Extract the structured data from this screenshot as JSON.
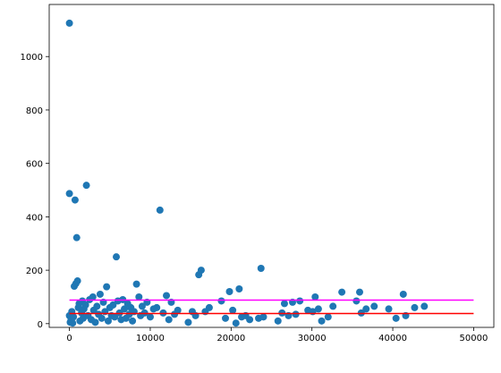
{
  "chart_data": {
    "type": "scatter",
    "xlim": [
      -2500,
      52500
    ],
    "ylim": [
      -14,
      1195
    ],
    "xticks": [
      0,
      10000,
      20000,
      30000,
      40000,
      50000
    ],
    "yticks": [
      0,
      200,
      400,
      600,
      800,
      1000
    ],
    "color": "#1f77b4",
    "x": [
      0,
      0,
      0,
      100,
      200,
      300,
      400,
      500,
      600,
      700,
      800,
      900,
      1000,
      1100,
      1200,
      1300,
      1500,
      1600,
      1700,
      1800,
      2000,
      2100,
      2300,
      2500,
      2700,
      2900,
      3000,
      3200,
      3400,
      3600,
      3800,
      4000,
      4200,
      4400,
      4600,
      4800,
      5000,
      5200,
      5400,
      5600,
      5800,
      6000,
      6200,
      6400,
      6600,
      6800,
      7000,
      7200,
      7400,
      7600,
      7800,
      8000,
      8300,
      8600,
      8800,
      9000,
      9300,
      9600,
      10000,
      10400,
      10800,
      11200,
      11600,
      12000,
      12300,
      12600,
      13000,
      13400,
      14700,
      15200,
      15600,
      16000,
      16300,
      16800,
      17300,
      18800,
      19300,
      19800,
      20200,
      20600,
      21000,
      21300,
      21800,
      22300,
      23400,
      23700,
      24000,
      25800,
      26300,
      26600,
      27100,
      27600,
      28000,
      28500,
      29500,
      30100,
      30400,
      30800,
      31200,
      32000,
      32600,
      33700,
      35500,
      35900,
      36100,
      36700,
      37700,
      39500,
      40400,
      41300,
      41600,
      42700,
      43900
    ],
    "values": [
      1125,
      487,
      30,
      5,
      15,
      45,
      2,
      25,
      140,
      463,
      150,
      322,
      160,
      60,
      75,
      10,
      40,
      85,
      20,
      55,
      70,
      518,
      30,
      90,
      15,
      100,
      50,
      5,
      65,
      35,
      110,
      20,
      80,
      45,
      138,
      10,
      60,
      30,
      70,
      25,
      250,
      85,
      40,
      15,
      90,
      55,
      20,
      75,
      35,
      60,
      10,
      45,
      148,
      100,
      30,
      65,
      40,
      80,
      25,
      55,
      60,
      425,
      40,
      105,
      15,
      80,
      35,
      50,
      5,
      45,
      30,
      183,
      200,
      45,
      60,
      85,
      20,
      120,
      50,
      2,
      130,
      25,
      30,
      15,
      20,
      207,
      25,
      10,
      40,
      75,
      30,
      80,
      35,
      85,
      50,
      45,
      100,
      55,
      10,
      25,
      65,
      118,
      85,
      118,
      40,
      55,
      65,
      55,
      20,
      110,
      30,
      60,
      65
    ],
    "lines": [
      {
        "color": "red",
        "x": [
          0,
          50000
        ],
        "values": [
          38,
          38
        ]
      },
      {
        "color": "magenta",
        "x": [
          0,
          50000
        ],
        "values": [
          88,
          88
        ]
      }
    ]
  }
}
